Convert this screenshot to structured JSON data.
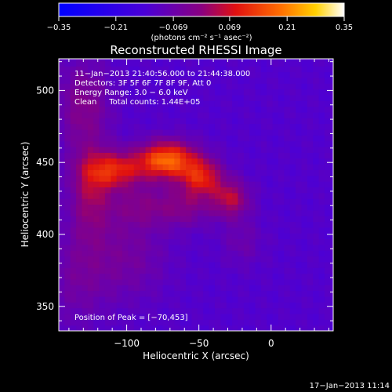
{
  "chart_data": {
    "type": "heatmap",
    "title": "Reconstructed RHESSI Image",
    "xlabel": "Heliocentric X (arcsec)",
    "ylabel": "Heliocentric Y (arcsec)",
    "xlim": [
      -147,
      43
    ],
    "ylim": [
      333,
      522
    ],
    "xticks": [
      -100,
      -50,
      0
    ],
    "xtick_labels": [
      "−100",
      "−50",
      "0"
    ],
    "yticks": [
      350,
      400,
      450,
      500
    ],
    "ytick_labels": [
      "350",
      "400",
      "450",
      "500"
    ],
    "colorbar": {
      "range": [
        -0.35,
        0.35
      ],
      "ticks": [
        -0.35,
        -0.21,
        -0.069,
        0.069,
        0.21,
        0.35
      ],
      "tick_labels": [
        "−0.35",
        "−0.21",
        "−0.069",
        "0.069",
        "0.21",
        "0.35"
      ],
      "label": "(photons cm⁻² s⁻¹ asec⁻²)"
    },
    "info_lines": [
      "11−Jan−2013 21:40:56.000 to 21:44:38.000",
      "Detectors: 3F 5F 6F 7F 8F 9F, Att 0",
      "Energy Range: 3.0 − 6.0 keV",
      "Clean     Total counts: 1.44E+05"
    ],
    "peak_label": "Position of Peak = [−70,453]",
    "peak_position": [
      -70,
      453
    ],
    "source_components": [
      {
        "x": -72,
        "y": 452,
        "amp": 0.3,
        "sx": 14,
        "sy": 9
      },
      {
        "x": -108,
        "y": 445,
        "amp": 0.2,
        "sx": 14,
        "sy": 9
      },
      {
        "x": -125,
        "y": 430,
        "amp": 0.13,
        "sx": 10,
        "sy": 22
      },
      {
        "x": -48,
        "y": 440,
        "amp": 0.2,
        "sx": 10,
        "sy": 9
      },
      {
        "x": -28,
        "y": 425,
        "amp": 0.16,
        "sx": 9,
        "sy": 9
      },
      {
        "x": -60,
        "y": 420,
        "amp": 0.1,
        "sx": 14,
        "sy": 10
      },
      {
        "x": -92,
        "y": 420,
        "amp": 0.08,
        "sx": 14,
        "sy": 10
      },
      {
        "x": -130,
        "y": 490,
        "amp": 0.1,
        "sx": 13,
        "sy": 22
      },
      {
        "x": -100,
        "y": 385,
        "amp": 0.07,
        "sx": 20,
        "sy": 22
      },
      {
        "x": -135,
        "y": 370,
        "amp": 0.06,
        "sx": 15,
        "sy": 25
      },
      {
        "x": -20,
        "y": 395,
        "amp": 0.05,
        "sx": 10,
        "sy": 12
      }
    ],
    "background_level": -0.12
  },
  "footer": {
    "timestamp": "17−Jan−2013 11:14"
  }
}
